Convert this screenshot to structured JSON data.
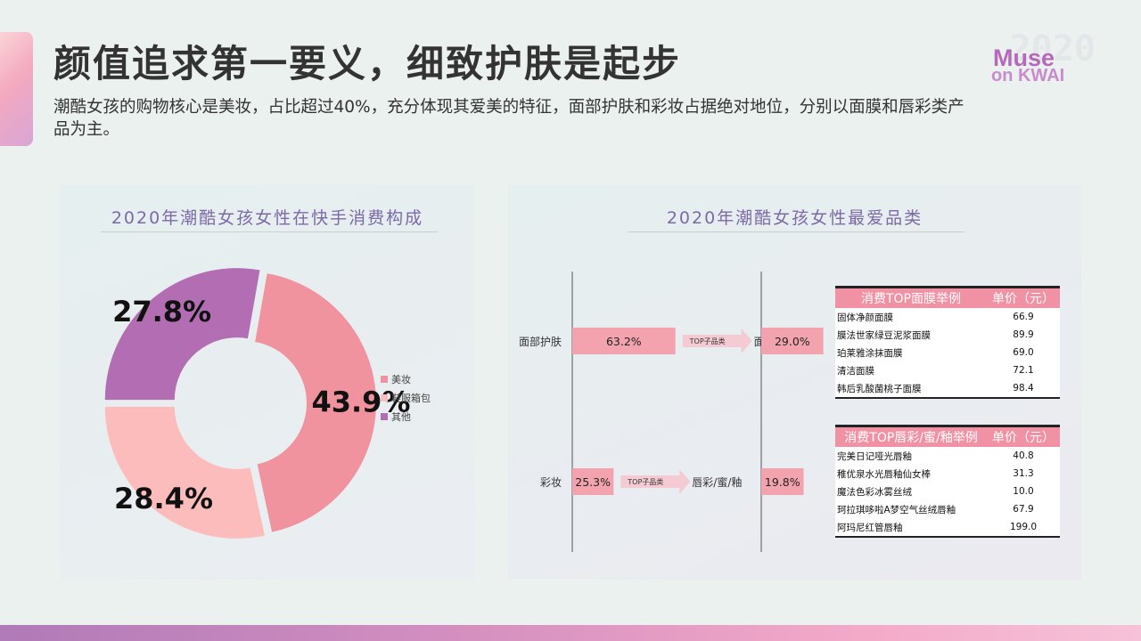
{
  "header": {
    "title": "颜值追求第一要义，细致护肤是起步",
    "subtitle": "潮酷女孩的购物核心是美妆，占比超过40%，充分体现其爱美的特征，面部护肤和彩妆占据绝对地位，分别以面膜和唇彩类产品为主。"
  },
  "logo": {
    "year": "2020",
    "line1": "Muse",
    "line2": "on KWAI"
  },
  "colors": {
    "makeup": "#f0939e",
    "shoes_bags": "#fdbcbc",
    "other": "#b26db3",
    "bar": "#f3a3ad"
  },
  "chart_data": [
    {
      "type": "pie",
      "title": "2020年潮酷女孩女性在快手消费构成",
      "categories": [
        "美妆",
        "鞋服箱包",
        "其他"
      ],
      "values": [
        43.9,
        28.4,
        27.8
      ],
      "labels": [
        "43.9%",
        "28.4%",
        "27.8%"
      ],
      "legend": "right"
    },
    {
      "type": "bar",
      "title": "2020年潮酷女孩女性最爱品类",
      "categories": [
        "面部护肤",
        "彩妆"
      ],
      "series": [
        {
          "values": [
            63.2,
            25.3
          ],
          "labels": [
            "63.2%",
            "25.3%"
          ]
        }
      ],
      "arrow_label": "TOP子品类",
      "subcategories": [
        "面膜",
        "唇彩/蜜/釉"
      ],
      "sub_series": {
        "values": [
          29.0,
          19.8
        ],
        "labels": [
          "29.0%",
          "19.8%"
        ]
      }
    }
  ],
  "tables": {
    "masks": {
      "header": [
        "消费TOP面膜举例",
        "单价（元）"
      ],
      "rows": [
        [
          "固体净颜面膜",
          "66.9"
        ],
        [
          "膜法世家绿豆泥浆面膜",
          "89.9"
        ],
        [
          "珀莱雅涂抹面膜",
          "69.0"
        ],
        [
          "清洁面膜",
          "72.1"
        ],
        [
          "韩后乳酸菌桃子面膜",
          "98.4"
        ]
      ]
    },
    "lips": {
      "header": [
        "消费TOP唇彩/蜜/釉举例",
        "单价（元）"
      ],
      "rows": [
        [
          "完美日记哑光唇釉",
          "40.8"
        ],
        [
          "稚优泉水光唇釉仙女棒",
          "31.3"
        ],
        [
          "魔法色彩冰雾丝绒",
          "10.0"
        ],
        [
          "珂拉琪哆啦A梦空气丝绒唇釉",
          "67.9"
        ],
        [
          "阿玛尼红管唇釉",
          "199.0"
        ]
      ]
    }
  }
}
